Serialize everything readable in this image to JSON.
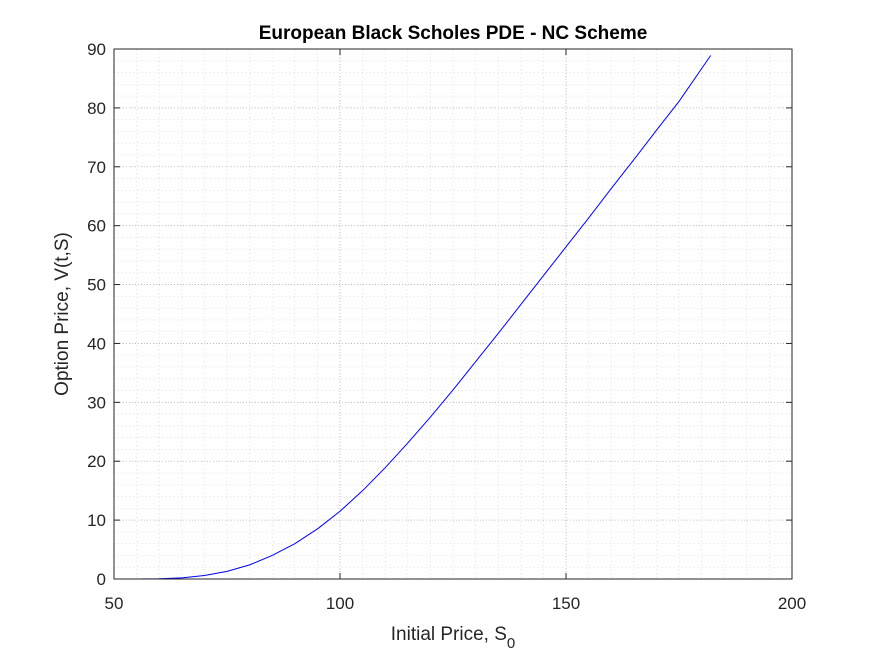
{
  "chart_data": {
    "type": "line",
    "title": "European Black Scholes PDE - NC Scheme",
    "xlabel": "Initial Price, S",
    "xlabel_subscript": "0",
    "ylabel": "Option Price,  V(t,S)",
    "xlim": [
      50,
      200
    ],
    "ylim": [
      0,
      90
    ],
    "xticks": [
      50,
      100,
      150,
      200
    ],
    "yticks": [
      0,
      10,
      20,
      30,
      40,
      50,
      60,
      70,
      80,
      90
    ],
    "grid": true,
    "minor_grid": true,
    "legend": "none",
    "series": [
      {
        "color": "#0000ff",
        "x": [
          55,
          60,
          65,
          70,
          75,
          80,
          85,
          90,
          95,
          100,
          105,
          110,
          115,
          120,
          125,
          130,
          135,
          140,
          145,
          150,
          155,
          160,
          165,
          170,
          175,
          182
        ],
        "y": [
          0.0,
          0.05,
          0.2,
          0.6,
          1.3,
          2.4,
          4.0,
          6.0,
          8.5,
          11.5,
          15.0,
          18.9,
          23.1,
          27.5,
          32.1,
          36.9,
          41.7,
          46.6,
          51.5,
          56.4,
          61.3,
          66.3,
          71.2,
          76.2,
          81.1,
          88.9
        ]
      }
    ]
  }
}
